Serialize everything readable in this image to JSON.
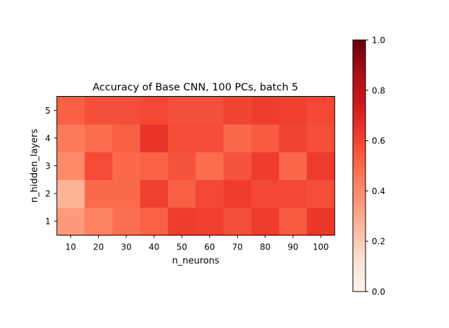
{
  "chart_data": {
    "type": "heatmap",
    "title": "Accuracy of Base CNN, 100 PCs, batch 5",
    "xlabel": "n_neurons",
    "ylabel": "n_hidden_layers",
    "x": [
      "10",
      "20",
      "30",
      "40",
      "50",
      "60",
      "70",
      "80",
      "90",
      "100"
    ],
    "y": [
      "1",
      "2",
      "3",
      "4",
      "5"
    ],
    "values": [
      [
        0.35,
        0.42,
        0.48,
        0.52,
        0.62,
        0.61,
        0.57,
        0.62,
        0.54,
        0.64
      ],
      [
        0.27,
        0.5,
        0.5,
        0.61,
        0.53,
        0.59,
        0.62,
        0.59,
        0.59,
        0.57
      ],
      [
        0.4,
        0.58,
        0.5,
        0.52,
        0.56,
        0.49,
        0.56,
        0.62,
        0.51,
        0.63
      ],
      [
        0.45,
        0.49,
        0.53,
        0.65,
        0.58,
        0.58,
        0.5,
        0.54,
        0.6,
        0.57
      ],
      [
        0.53,
        0.57,
        0.57,
        0.59,
        0.57,
        0.57,
        0.6,
        0.62,
        0.61,
        0.59
      ]
    ],
    "colormap": "Reds",
    "colorbar": {
      "range": [
        0.0,
        1.0
      ],
      "ticks": [
        "0.0",
        "0.2",
        "0.4",
        "0.6",
        "0.8",
        "1.0"
      ]
    }
  }
}
